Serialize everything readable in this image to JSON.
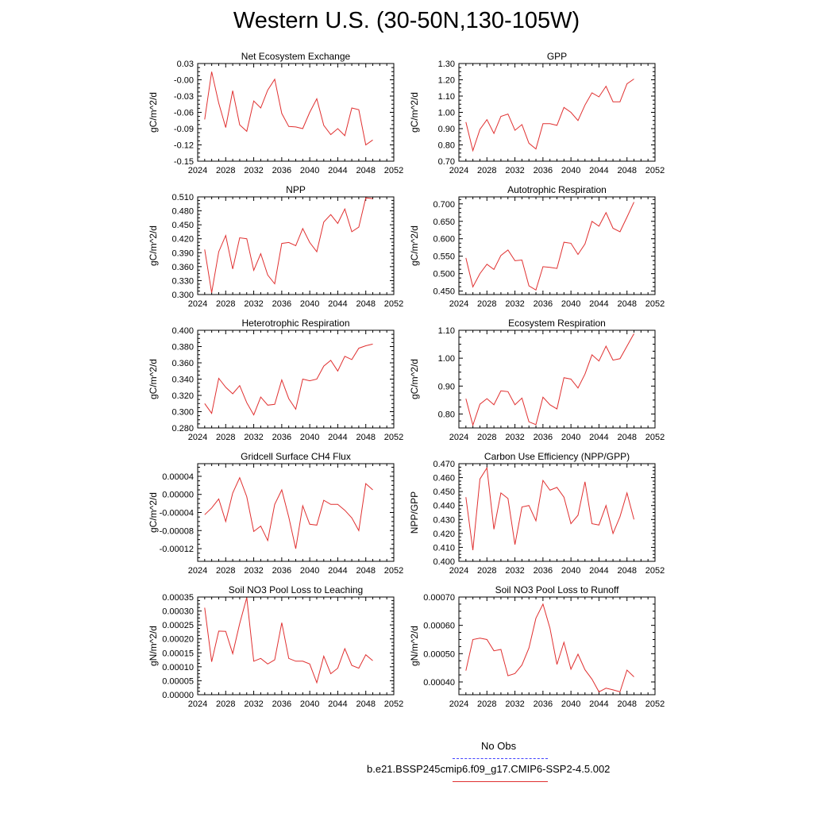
{
  "title": "Western U.S. (30-50N,130-105W)",
  "legend": {
    "entries": [
      {
        "label": "No Obs",
        "color": "#4040ff",
        "style": "dashed"
      },
      {
        "label": "b.e21.BSSP245cmip6.f09_g17.CMIP6-SSP2-4.5.002",
        "color": "#e03030",
        "style": "solid"
      }
    ]
  },
  "chart_data": [
    {
      "type": "line",
      "title": "Net Ecosystem Exchange",
      "ylabel": "gC/m^2/d",
      "xlim": [
        2024,
        2052
      ],
      "ylim": [
        -0.15,
        0.03
      ],
      "xticks": [
        2024,
        2028,
        2032,
        2036,
        2040,
        2044,
        2048,
        2052
      ],
      "xtick_labels": [
        "2024",
        "2028",
        "2032",
        "2036",
        "2040",
        "2044",
        "2048",
        "2052"
      ],
      "yticks": [
        -0.15,
        -0.12,
        -0.09,
        -0.06,
        -0.03,
        0.0,
        0.03
      ],
      "ytick_labels": [
        "-0.15",
        "-0.12",
        "-0.09",
        "-0.06",
        "-0.03",
        "-0.00",
        "0.03"
      ],
      "x": [
        2025,
        2026,
        2027,
        2028,
        2029,
        2030,
        2031,
        2032,
        2033,
        2034,
        2035,
        2036,
        2037,
        2038,
        2039,
        2040,
        2041,
        2042,
        2043,
        2044,
        2045,
        2046,
        2047,
        2048,
        2049
      ],
      "series": [
        {
          "color": "#e03030",
          "values": [
            -0.073,
            0.015,
            -0.043,
            -0.088,
            -0.02,
            -0.083,
            -0.095,
            -0.039,
            -0.052,
            -0.019,
            0.001,
            -0.062,
            -0.086,
            -0.087,
            -0.09,
            -0.06,
            -0.035,
            -0.084,
            -0.101,
            -0.09,
            -0.103,
            -0.052,
            -0.055,
            -0.12,
            -0.111
          ]
        }
      ]
    },
    {
      "type": "line",
      "title": "GPP",
      "ylabel": "gC/m^2/d",
      "xlim": [
        2024,
        2052
      ],
      "ylim": [
        0.7,
        1.3
      ],
      "xticks": [
        2024,
        2028,
        2032,
        2036,
        2040,
        2044,
        2048,
        2052
      ],
      "xtick_labels": [
        "2024",
        "2028",
        "2032",
        "2036",
        "2040",
        "2044",
        "2048",
        "2052"
      ],
      "yticks": [
        0.7,
        0.8,
        0.9,
        1.0,
        1.1,
        1.2,
        1.3
      ],
      "ytick_labels": [
        "0.70",
        "0.80",
        "0.90",
        "1.00",
        "1.10",
        "1.20",
        "1.30"
      ],
      "x": [
        2025,
        2026,
        2027,
        2028,
        2029,
        2030,
        2031,
        2032,
        2033,
        2034,
        2035,
        2036,
        2037,
        2038,
        2039,
        2040,
        2041,
        2042,
        2043,
        2044,
        2045,
        2046,
        2047,
        2048,
        2049
      ],
      "series": [
        {
          "color": "#e03030",
          "values": [
            0.94,
            0.765,
            0.895,
            0.955,
            0.87,
            0.975,
            0.99,
            0.89,
            0.925,
            0.81,
            0.775,
            0.93,
            0.93,
            0.92,
            1.03,
            1.0,
            0.95,
            1.045,
            1.12,
            1.095,
            1.16,
            1.065,
            1.065,
            1.175,
            1.205
          ]
        }
      ]
    },
    {
      "type": "line",
      "title": "NPP",
      "ylabel": "gC/m^2/d",
      "xlim": [
        2024,
        2052
      ],
      "ylim": [
        0.3,
        0.51
      ],
      "xticks": [
        2024,
        2028,
        2032,
        2036,
        2040,
        2044,
        2048,
        2052
      ],
      "xtick_labels": [
        "2024",
        "2028",
        "2032",
        "2036",
        "2040",
        "2044",
        "2048",
        "2052"
      ],
      "yticks": [
        0.3,
        0.33,
        0.36,
        0.39,
        0.42,
        0.45,
        0.48,
        0.51
      ],
      "ytick_labels": [
        "0.300",
        "0.330",
        "0.360",
        "0.390",
        "0.420",
        "0.450",
        "0.480",
        "0.510"
      ],
      "x": [
        2025,
        2026,
        2027,
        2028,
        2029,
        2030,
        2031,
        2032,
        2033,
        2034,
        2035,
        2036,
        2037,
        2038,
        2039,
        2040,
        2041,
        2042,
        2043,
        2044,
        2045,
        2046,
        2047,
        2048,
        2049
      ],
      "series": [
        {
          "color": "#e03030",
          "values": [
            0.397,
            0.304,
            0.392,
            0.427,
            0.355,
            0.422,
            0.42,
            0.352,
            0.388,
            0.342,
            0.323,
            0.41,
            0.412,
            0.405,
            0.442,
            0.412,
            0.392,
            0.456,
            0.472,
            0.453,
            0.484,
            0.435,
            0.445,
            0.508,
            0.506
          ]
        }
      ]
    },
    {
      "type": "line",
      "title": "Autotrophic Respiration",
      "ylabel": "gC/m^2/d",
      "xlim": [
        2024,
        2052
      ],
      "ylim": [
        0.44,
        0.72
      ],
      "xticks": [
        2024,
        2028,
        2032,
        2036,
        2040,
        2044,
        2048,
        2052
      ],
      "xtick_labels": [
        "2024",
        "2028",
        "2032",
        "2036",
        "2040",
        "2044",
        "2048",
        "2052"
      ],
      "yticks": [
        0.45,
        0.5,
        0.55,
        0.6,
        0.65,
        0.7
      ],
      "ytick_labels": [
        "0.450",
        "0.500",
        "0.550",
        "0.600",
        "0.650",
        "0.700"
      ],
      "x": [
        2025,
        2026,
        2027,
        2028,
        2029,
        2030,
        2031,
        2032,
        2033,
        2034,
        2035,
        2036,
        2037,
        2038,
        2039,
        2040,
        2041,
        2042,
        2043,
        2044,
        2045,
        2046,
        2047,
        2048,
        2049
      ],
      "series": [
        {
          "color": "#e03030",
          "values": [
            0.545,
            0.462,
            0.5,
            0.527,
            0.512,
            0.552,
            0.568,
            0.537,
            0.539,
            0.465,
            0.453,
            0.52,
            0.518,
            0.515,
            0.59,
            0.587,
            0.555,
            0.585,
            0.65,
            0.636,
            0.675,
            0.63,
            0.62,
            0.662,
            0.705
          ]
        }
      ]
    },
    {
      "type": "line",
      "title": "Heterotrophic Respiration",
      "ylabel": "gC/m^2/d",
      "xlim": [
        2024,
        2052
      ],
      "ylim": [
        0.28,
        0.4
      ],
      "xticks": [
        2024,
        2028,
        2032,
        2036,
        2040,
        2044,
        2048,
        2052
      ],
      "xtick_labels": [
        "2024",
        "2028",
        "2032",
        "2036",
        "2040",
        "2044",
        "2048",
        "2052"
      ],
      "yticks": [
        0.28,
        0.3,
        0.32,
        0.34,
        0.36,
        0.38,
        0.4
      ],
      "ytick_labels": [
        "0.280",
        "0.300",
        "0.320",
        "0.340",
        "0.360",
        "0.380",
        "0.400"
      ],
      "x": [
        2025,
        2026,
        2027,
        2028,
        2029,
        2030,
        2031,
        2032,
        2033,
        2034,
        2035,
        2036,
        2037,
        2038,
        2039,
        2040,
        2041,
        2042,
        2043,
        2044,
        2045,
        2046,
        2047,
        2048,
        2049
      ],
      "series": [
        {
          "color": "#e03030",
          "values": [
            0.31,
            0.298,
            0.341,
            0.33,
            0.322,
            0.332,
            0.311,
            0.296,
            0.318,
            0.308,
            0.309,
            0.339,
            0.316,
            0.303,
            0.34,
            0.338,
            0.34,
            0.356,
            0.363,
            0.35,
            0.368,
            0.364,
            0.378,
            0.381,
            0.383
          ]
        }
      ]
    },
    {
      "type": "line",
      "title": "Ecosystem Respiration",
      "ylabel": "gC/m^2/d",
      "xlim": [
        2024,
        2052
      ],
      "ylim": [
        0.75,
        1.1
      ],
      "xticks": [
        2024,
        2028,
        2032,
        2036,
        2040,
        2044,
        2048,
        2052
      ],
      "xtick_labels": [
        "2024",
        "2028",
        "2032",
        "2036",
        "2040",
        "2044",
        "2048",
        "2052"
      ],
      "yticks": [
        0.8,
        0.9,
        1.0,
        1.1
      ],
      "ytick_labels": [
        "0.80",
        "0.90",
        "1.00",
        "1.10"
      ],
      "x": [
        2025,
        2026,
        2027,
        2028,
        2029,
        2030,
        2031,
        2032,
        2033,
        2034,
        2035,
        2036,
        2037,
        2038,
        2039,
        2040,
        2041,
        2042,
        2043,
        2044,
        2045,
        2046,
        2047,
        2048,
        2049
      ],
      "series": [
        {
          "color": "#e03030",
          "values": [
            0.855,
            0.76,
            0.835,
            0.855,
            0.833,
            0.883,
            0.88,
            0.833,
            0.857,
            0.772,
            0.762,
            0.86,
            0.833,
            0.818,
            0.93,
            0.925,
            0.893,
            0.943,
            1.012,
            0.99,
            1.043,
            0.993,
            0.998,
            1.043,
            1.088
          ]
        }
      ]
    },
    {
      "type": "line",
      "title": "Gridcell Surface CH4 Flux",
      "ylabel": "gC/m^2/d",
      "xlim": [
        2024,
        2052
      ],
      "ylim": [
        -0.000148,
        6.8e-05
      ],
      "xticks": [
        2024,
        2028,
        2032,
        2036,
        2040,
        2044,
        2048,
        2052
      ],
      "xtick_labels": [
        "2024",
        "2028",
        "2032",
        "2036",
        "2040",
        "2044",
        "2048",
        "2052"
      ],
      "yticks": [
        -0.00012,
        -8e-05,
        -4e-05,
        0.0,
        4e-05
      ],
      "ytick_labels": [
        "-0.00012",
        "-0.00008",
        "-0.00004",
        "0.00000",
        "0.00004"
      ],
      "x": [
        2025,
        2026,
        2027,
        2028,
        2029,
        2030,
        2031,
        2032,
        2033,
        2034,
        2035,
        2036,
        2037,
        2038,
        2039,
        2040,
        2041,
        2042,
        2043,
        2044,
        2045,
        2046,
        2047,
        2048,
        2049
      ],
      "series": [
        {
          "color": "#e03030",
          "values": [
            -4.5e-05,
            -3e-05,
            -1e-05,
            -6e-05,
            3e-06,
            3.7e-05,
            -5e-06,
            -8.2e-05,
            -7e-05,
            -0.000102,
            -2.2e-05,
            1e-05,
            -5e-05,
            -0.00012,
            -2.5e-05,
            -6.6e-05,
            -6.8e-05,
            -1.3e-05,
            -2.2e-05,
            -2.2e-05,
            -3.5e-05,
            -5.2e-05,
            -8e-05,
            2.4e-05,
            1e-05
          ]
        }
      ]
    },
    {
      "type": "line",
      "title": "Carbon Use Efficiency (NPP/GPP)",
      "ylabel": "NPP/GPP",
      "xlim": [
        2024,
        2052
      ],
      "ylim": [
        0.4,
        0.47
      ],
      "xticks": [
        2024,
        2028,
        2032,
        2036,
        2040,
        2044,
        2048,
        2052
      ],
      "xtick_labels": [
        "2024",
        "2028",
        "2032",
        "2036",
        "2040",
        "2044",
        "2048",
        "2052"
      ],
      "yticks": [
        0.4,
        0.41,
        0.42,
        0.43,
        0.44,
        0.45,
        0.46,
        0.47
      ],
      "ytick_labels": [
        "0.400",
        "0.410",
        "0.420",
        "0.430",
        "0.440",
        "0.450",
        "0.460",
        "0.470"
      ],
      "x": [
        2025,
        2026,
        2027,
        2028,
        2029,
        2030,
        2031,
        2032,
        2033,
        2034,
        2035,
        2036,
        2037,
        2038,
        2039,
        2040,
        2041,
        2042,
        2043,
        2044,
        2045,
        2046,
        2047,
        2048,
        2049
      ],
      "series": [
        {
          "color": "#e03030",
          "values": [
            0.446,
            0.408,
            0.459,
            0.467,
            0.423,
            0.449,
            0.445,
            0.412,
            0.439,
            0.44,
            0.429,
            0.458,
            0.451,
            0.453,
            0.446,
            0.427,
            0.433,
            0.457,
            0.427,
            0.426,
            0.44,
            0.42,
            0.432,
            0.449,
            0.43
          ]
        }
      ]
    },
    {
      "type": "line",
      "title": "Soil NO3 Pool Loss to Leaching",
      "ylabel": "gN/m^2/d",
      "xlim": [
        2024,
        2052
      ],
      "ylim": [
        0.0,
        0.00035
      ],
      "xticks": [
        2024,
        2028,
        2032,
        2036,
        2040,
        2044,
        2048,
        2052
      ],
      "xtick_labels": [
        "2024",
        "2028",
        "2032",
        "2036",
        "2040",
        "2044",
        "2048",
        "2052"
      ],
      "yticks": [
        0.0,
        5e-05,
        0.0001,
        0.00015,
        0.0002,
        0.00025,
        0.0003,
        0.00035
      ],
      "ytick_labels": [
        "0.00000",
        "0.00005",
        "0.00010",
        "0.00015",
        "0.00020",
        "0.00025",
        "0.00030",
        "0.00035"
      ],
      "x": [
        2025,
        2026,
        2027,
        2028,
        2029,
        2030,
        2031,
        2032,
        2033,
        2034,
        2035,
        2036,
        2037,
        2038,
        2039,
        2040,
        2041,
        2042,
        2043,
        2044,
        2045,
        2046,
        2047,
        2048,
        2049
      ],
      "series": [
        {
          "color": "#e03030",
          "values": [
            0.000312,
            0.000118,
            0.000228,
            0.000227,
            0.000147,
            0.000255,
            0.000348,
            0.00012,
            0.00013,
            0.00011,
            0.000125,
            0.000258,
            0.00013,
            0.00012,
            0.00012,
            0.00011,
            4.3e-05,
            0.000138,
            7.5e-05,
            9.5e-05,
            0.000165,
            0.000105,
            9.5e-05,
            0.000143,
            0.000122
          ]
        }
      ]
    },
    {
      "type": "line",
      "title": "Soil NO3 Pool Loss to Runoff",
      "ylabel": "gN/m^2/d",
      "xlim": [
        2024,
        2052
      ],
      "ylim": [
        0.000355,
        0.0007
      ],
      "xticks": [
        2024,
        2028,
        2032,
        2036,
        2040,
        2044,
        2048,
        2052
      ],
      "xtick_labels": [
        "2024",
        "2028",
        "2032",
        "2036",
        "2040",
        "2044",
        "2048",
        "2052"
      ],
      "yticks": [
        0.0004,
        0.0005,
        0.0006,
        0.0007
      ],
      "ytick_labels": [
        "0.00040",
        "0.00050",
        "0.00060",
        "0.00070"
      ],
      "x": [
        2025,
        2026,
        2027,
        2028,
        2029,
        2030,
        2031,
        2032,
        2033,
        2034,
        2035,
        2036,
        2037,
        2038,
        2039,
        2040,
        2041,
        2042,
        2043,
        2044,
        2045,
        2046,
        2047,
        2048,
        2049
      ],
      "series": [
        {
          "color": "#e03030",
          "values": [
            0.00044,
            0.00055,
            0.000555,
            0.00055,
            0.00051,
            0.000515,
            0.000422,
            0.00043,
            0.00046,
            0.00052,
            0.000625,
            0.000675,
            0.00059,
            0.000462,
            0.00054,
            0.000445,
            0.000498,
            0.000443,
            0.00041,
            0.000365,
            0.000378,
            0.000372,
            0.000365,
            0.000442,
            0.000418
          ]
        }
      ]
    }
  ]
}
